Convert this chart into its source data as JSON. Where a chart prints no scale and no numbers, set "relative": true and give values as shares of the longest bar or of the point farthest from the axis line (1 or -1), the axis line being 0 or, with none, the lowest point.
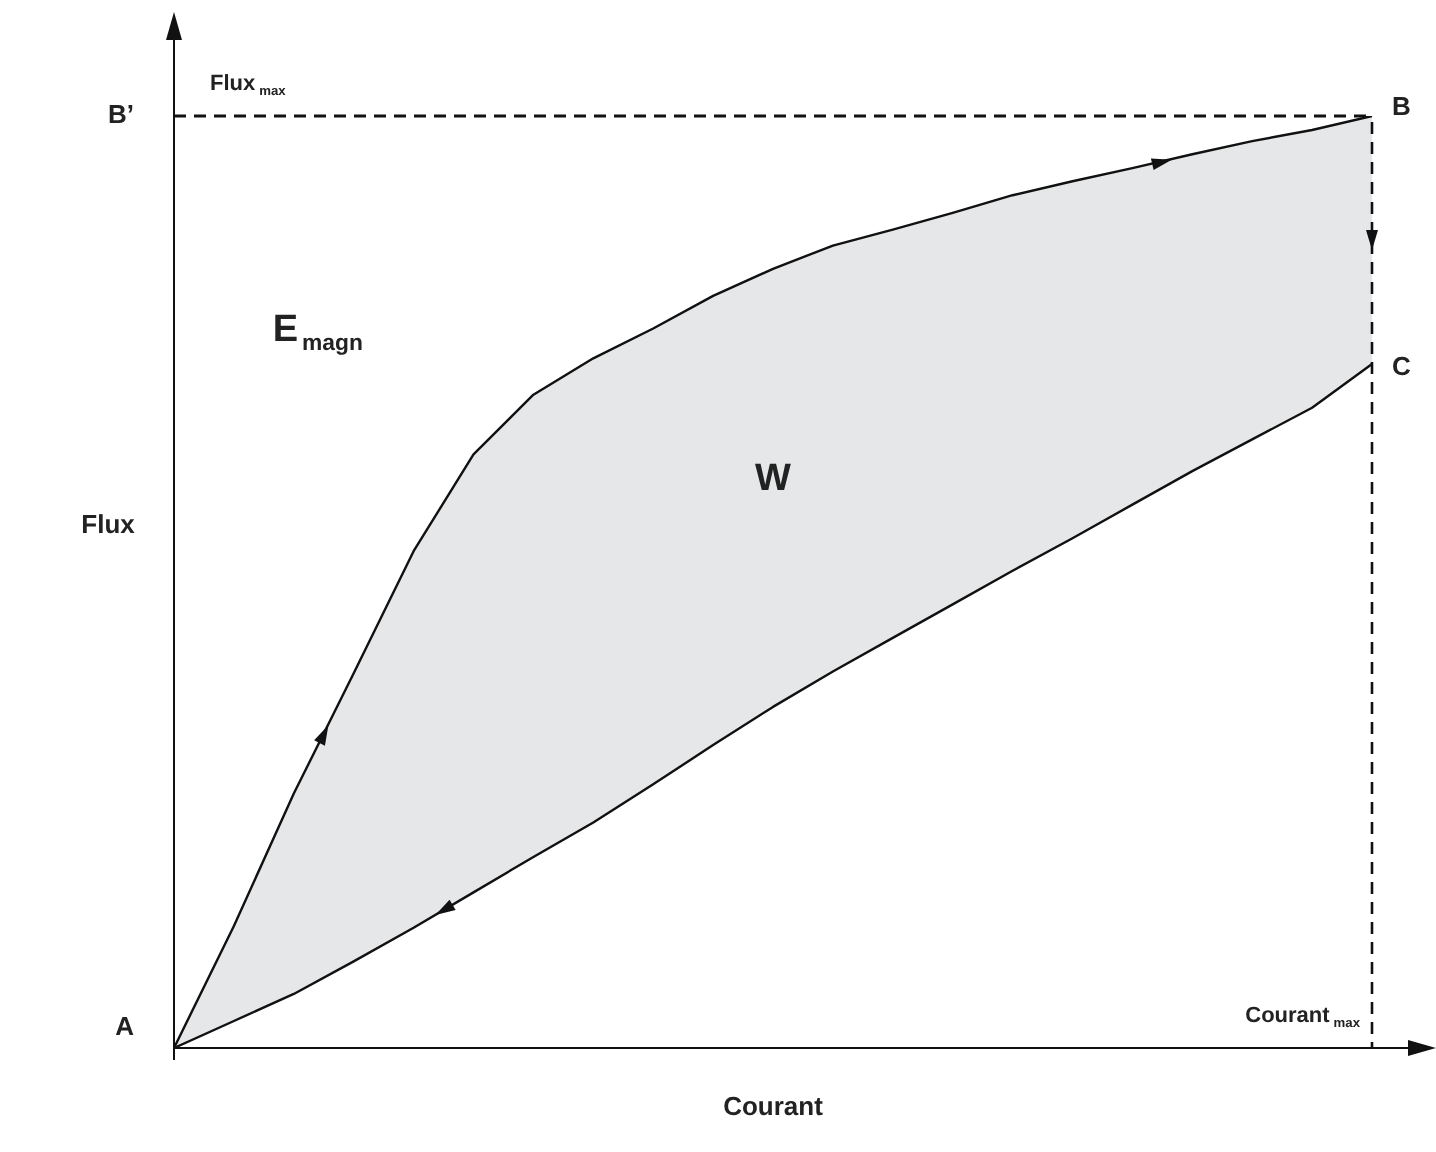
{
  "chart_data": {
    "type": "line",
    "relative": true,
    "xlabel": "Courant",
    "ylabel": "Flux",
    "marker": "none",
    "line_style": "solid",
    "categories": [
      null,
      null,
      null,
      null,
      null,
      null,
      null,
      null,
      null,
      null,
      null,
      null,
      null,
      null,
      null,
      null,
      null,
      null,
      null,
      null,
      null
    ],
    "series": [
      {
        "color": "#111111",
        "values": [
          0,
          0.131,
          0.273,
          0.402,
          0.533,
          0.637,
          0.701,
          0.74,
          0.772,
          0.807,
          0.836,
          0.861,
          0.878,
          0.896,
          0.915,
          0.93,
          0.944,
          0.959,
          0.973,
          0.985,
          1
        ]
      },
      {
        "color": "#111111",
        "values": [
          0,
          0.029,
          0.058,
          0.093,
          0.129,
          0.167,
          0.205,
          0.242,
          0.283,
          0.325,
          0.366,
          0.404,
          0.44,
          0.476,
          0.512,
          0.547,
          0.583,
          0.619,
          0.653,
          0.687,
          0.734
        ]
      }
    ],
    "ref_lines": [
      {
        "axis": "y",
        "value": 1,
        "label": "Flux$_{max}$",
        "line_style": "dashed"
      }
    ],
    "annotations": [
      "Courant$_{max}$",
      "A",
      "B",
      "B’",
      "C",
      "E$_{magn}$",
      "W"
    ]
  }
}
